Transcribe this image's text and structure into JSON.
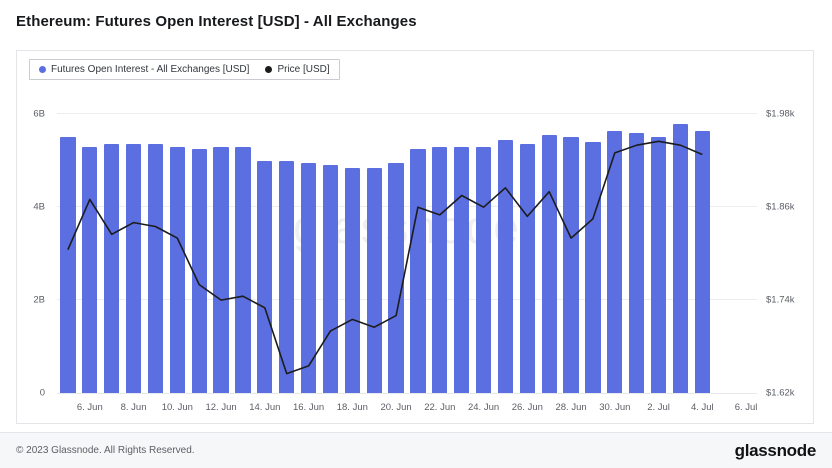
{
  "page": {
    "title": "Ethereum: Futures Open Interest [USD] - All Exchanges",
    "watermark": "glassnode",
    "footer": {
      "copyright": "© 2023 Glassnode. All Rights Reserved.",
      "brand": "glassnode"
    }
  },
  "legend": {
    "items": [
      {
        "label": "Futures Open Interest - All Exchanges [USD]",
        "color": "#5c6fe0"
      },
      {
        "label": "Price [USD]",
        "color": "#1c1c1c"
      }
    ]
  },
  "chart_data": {
    "type": "bar+line",
    "title": "Ethereum: Futures Open Interest [USD] - All Exchanges",
    "grid": true,
    "legend_position": "top-left",
    "slots": 32,
    "x": [
      "5. Jun",
      "6. Jun",
      "7. Jun",
      "8. Jun",
      "9. Jun",
      "10. Jun",
      "11. Jun",
      "12. Jun",
      "13. Jun",
      "14. Jun",
      "15. Jun",
      "16. Jun",
      "17. Jun",
      "18. Jun",
      "19. Jun",
      "20. Jun",
      "21. Jun",
      "22. Jun",
      "23. Jun",
      "24. Jun",
      "25. Jun",
      "26. Jun",
      "27. Jun",
      "28. Jun",
      "29. Jun",
      "30. Jun",
      "1. Jul",
      "2. Jul",
      "3. Jul",
      "4. Jul"
    ],
    "series": [
      {
        "name": "Futures Open Interest - All Exchanges [USD]",
        "type": "bar",
        "color": "#5c6fe0",
        "unit": "billion USD",
        "values": [
          5.5,
          5.3,
          5.35,
          5.35,
          5.35,
          5.3,
          5.25,
          5.3,
          5.3,
          5.0,
          5.0,
          4.95,
          4.9,
          4.85,
          4.85,
          4.95,
          5.25,
          5.3,
          5.3,
          5.3,
          5.45,
          5.35,
          5.55,
          5.5,
          5.4,
          5.65,
          5.6,
          5.5,
          5.8,
          5.65
        ]
      },
      {
        "name": "Price [USD]",
        "type": "line",
        "color": "#1c1c1c",
        "unit": "thousand USD",
        "values": [
          1.805,
          1.87,
          1.825,
          1.84,
          1.835,
          1.82,
          1.76,
          1.74,
          1.745,
          1.73,
          1.645,
          1.655,
          1.7,
          1.715,
          1.705,
          1.72,
          1.86,
          1.85,
          1.875,
          1.86,
          1.885,
          1.848,
          1.88,
          1.82,
          1.845,
          1.93,
          1.94,
          1.945,
          1.94,
          1.928
        ]
      }
    ],
    "left_axis": {
      "range": [
        0,
        6.5
      ],
      "unit": "B"
    },
    "right_axis": {
      "k_at_0B": 1.62,
      "k_at_6B": 1.98
    },
    "y_gridlines": [
      {
        "v": 0,
        "left": "0",
        "right": "$1.62k"
      },
      {
        "v": 2,
        "left": "2B",
        "right": "$1.74k"
      },
      {
        "v": 4,
        "left": "4B",
        "right": "$1.86k"
      },
      {
        "v": 6,
        "left": "6B",
        "right": "$1.98k"
      }
    ],
    "x_ticks": [
      {
        "label": "6. Jun",
        "slot": 1
      },
      {
        "label": "8. Jun",
        "slot": 3
      },
      {
        "label": "10. Jun",
        "slot": 5
      },
      {
        "label": "12. Jun",
        "slot": 7
      },
      {
        "label": "14. Jun",
        "slot": 9
      },
      {
        "label": "16. Jun",
        "slot": 11
      },
      {
        "label": "18. Jun",
        "slot": 13
      },
      {
        "label": "20. Jun",
        "slot": 15
      },
      {
        "label": "22. Jun",
        "slot": 17
      },
      {
        "label": "24. Jun",
        "slot": 19
      },
      {
        "label": "26. Jun",
        "slot": 21
      },
      {
        "label": "28. Jun",
        "slot": 23
      },
      {
        "label": "30. Jun",
        "slot": 25
      },
      {
        "label": "2. Jul",
        "slot": 27
      },
      {
        "label": "4. Jul",
        "slot": 29
      },
      {
        "label": "6. Jul",
        "slot": 31
      }
    ]
  }
}
